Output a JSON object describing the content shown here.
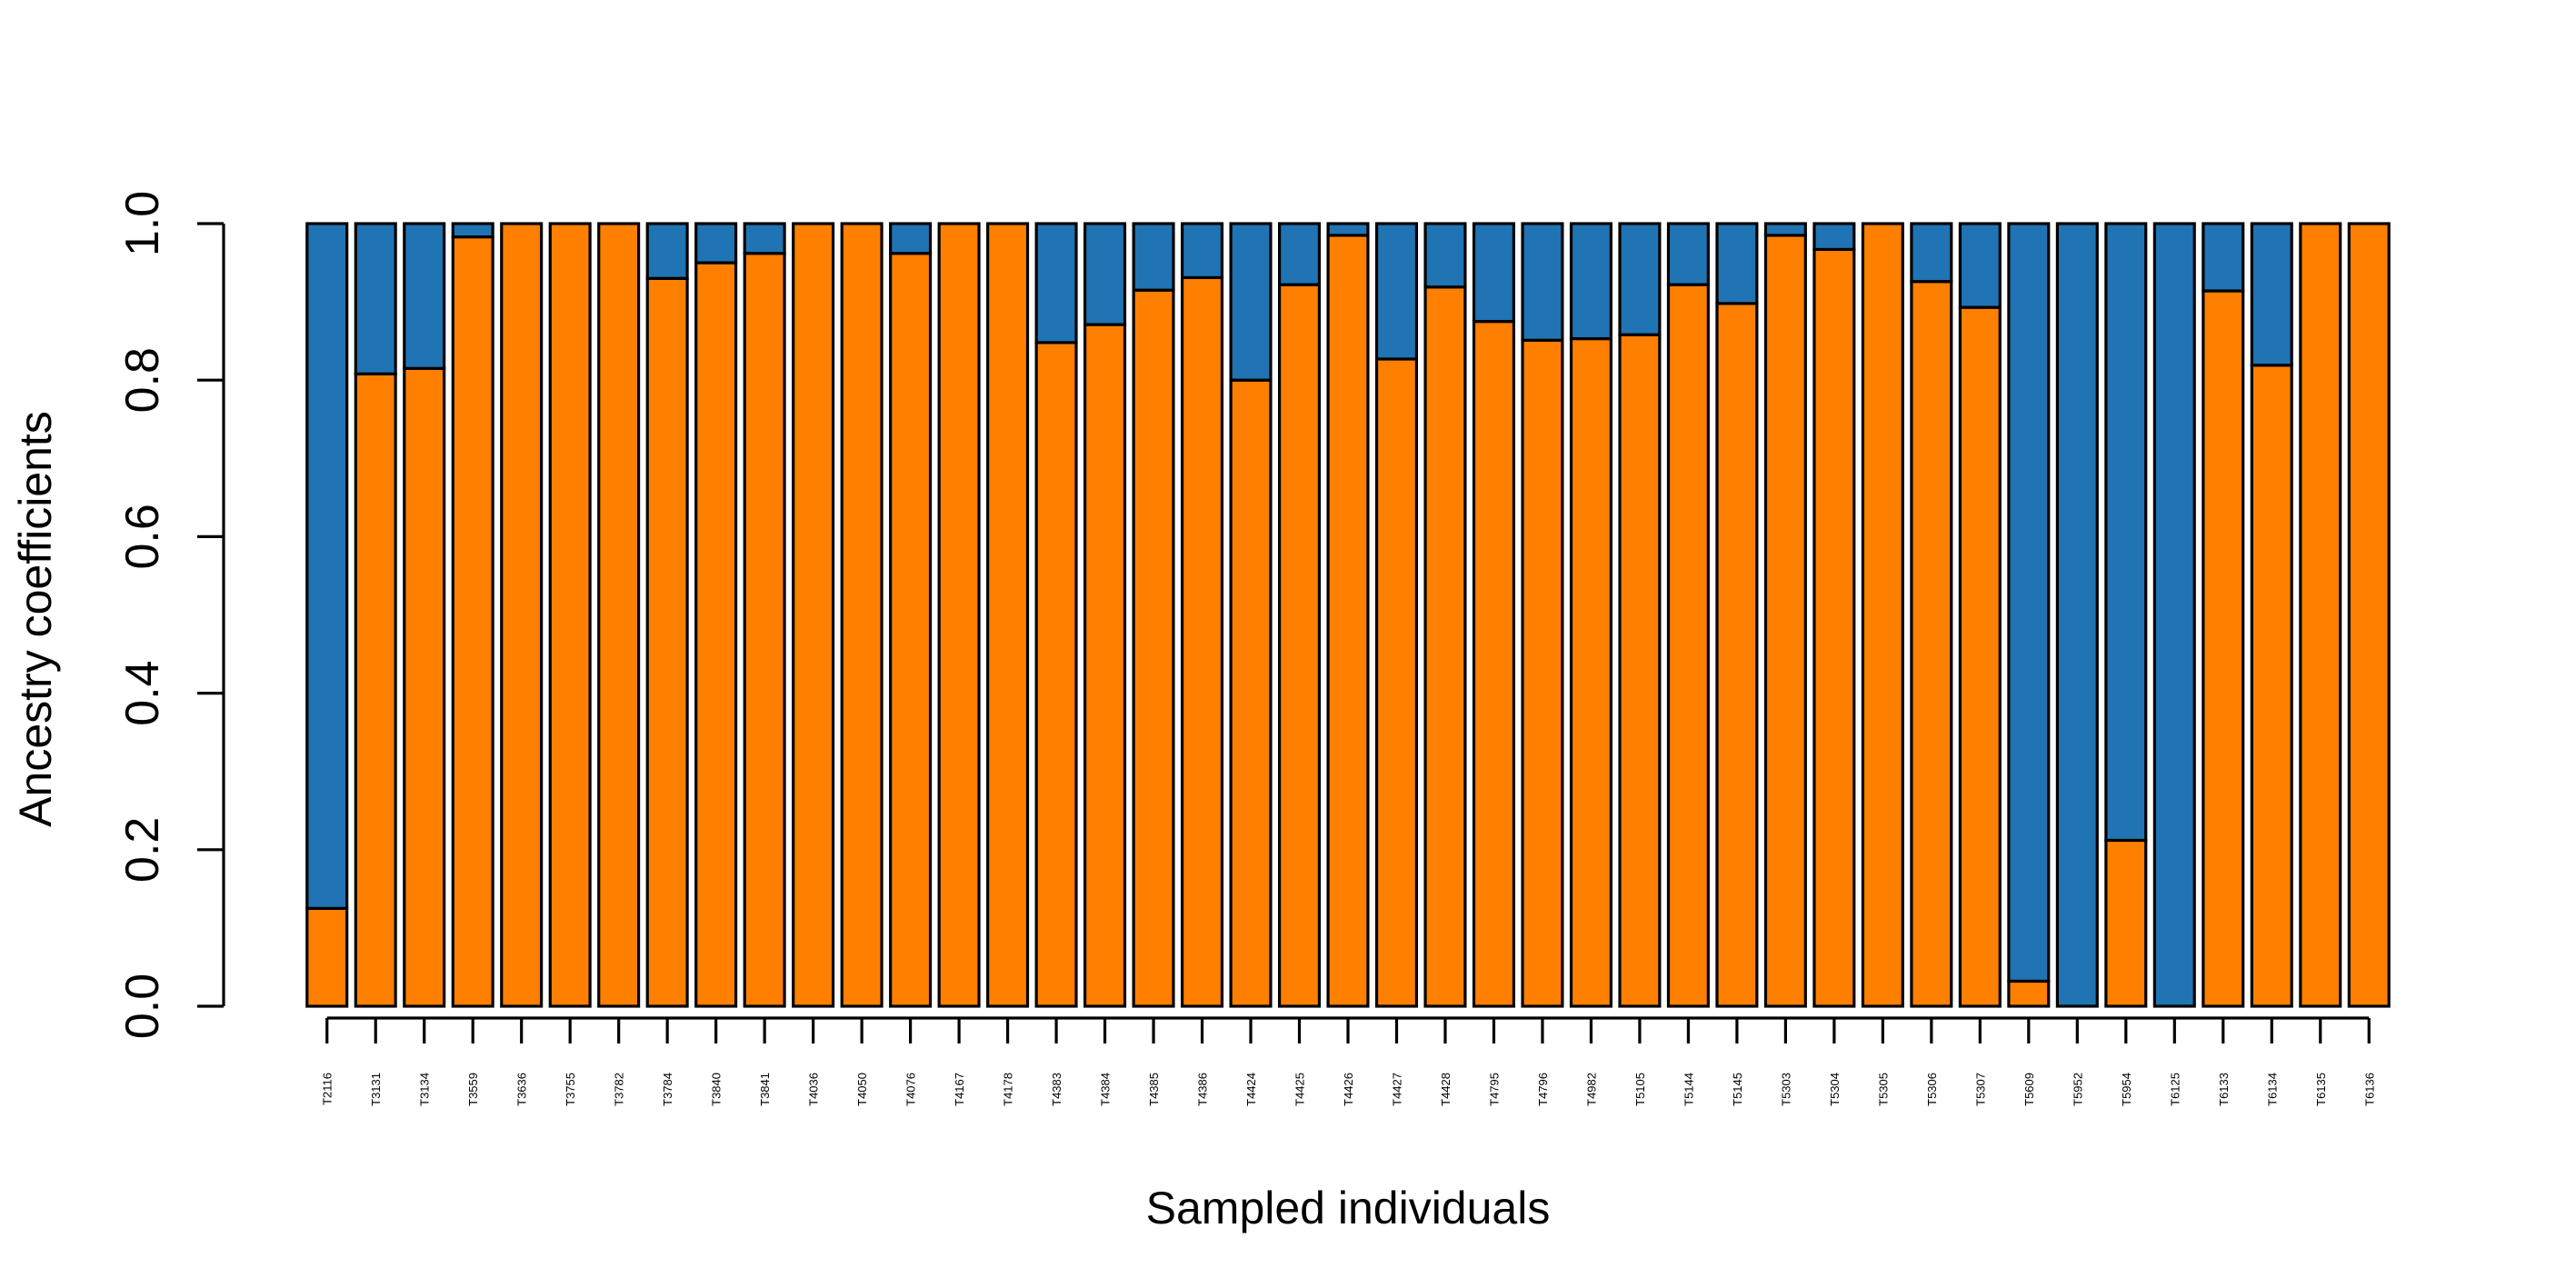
{
  "chart_data": {
    "type": "bar",
    "stacked": true,
    "xlabel": "Sampled individuals",
    "ylabel": "Ancestry coefficients",
    "ylim": [
      0,
      1
    ],
    "yticks": [
      "0.0",
      "0.2",
      "0.4",
      "0.6",
      "0.8",
      "1.0"
    ],
    "grid": false,
    "legend": "none",
    "colors": {
      "orange": "#ff7f00",
      "blue": "#2074b3"
    },
    "categories": [
      "T2116",
      "T3131",
      "T3134",
      "T3559",
      "T3636",
      "T3755",
      "T3782",
      "T3784",
      "T3840",
      "T3841",
      "T4036",
      "T4050",
      "T4076",
      "T4167",
      "T4178",
      "T4383",
      "T4384",
      "T4385",
      "T4386",
      "T4424",
      "T4425",
      "T4426",
      "T4427",
      "T4428",
      "T4795",
      "T4796",
      "T4982",
      "T5105",
      "T5144",
      "T5145",
      "T5303",
      "T5304",
      "T5305",
      "T5306",
      "T5307",
      "T5609",
      "T5952",
      "T5954",
      "T6125",
      "T6133",
      "T6134",
      "T6135",
      "T6136"
    ],
    "series": [
      {
        "color": "#ff7f00",
        "values": [
          0.125,
          0.808,
          0.815,
          0.983,
          1.0,
          1.0,
          1.0,
          0.93,
          0.95,
          0.962,
          1.0,
          1.0,
          0.962,
          1.0,
          1.0,
          0.848,
          0.871,
          0.915,
          0.931,
          0.8,
          0.922,
          0.985,
          0.827,
          0.919,
          0.875,
          0.851,
          0.853,
          0.858,
          0.922,
          0.898,
          0.985,
          0.967,
          1.0,
          0.926,
          0.893,
          0.032,
          0.0,
          0.212,
          0.0,
          0.914,
          0.819,
          1.0,
          1.0
        ]
      },
      {
        "color": "#2074b3",
        "values": [
          0.875,
          0.192,
          0.185,
          0.017,
          0.0,
          0.0,
          0.0,
          0.07,
          0.05,
          0.038,
          0.0,
          0.0,
          0.038,
          0.0,
          0.0,
          0.152,
          0.129,
          0.085,
          0.069,
          0.2,
          0.078,
          0.015,
          0.173,
          0.081,
          0.125,
          0.149,
          0.147,
          0.142,
          0.078,
          0.102,
          0.015,
          0.033,
          0.0,
          0.074,
          0.107,
          0.968,
          1.0,
          0.788,
          1.0,
          0.086,
          0.181,
          0.0,
          0.0
        ]
      }
    ]
  }
}
